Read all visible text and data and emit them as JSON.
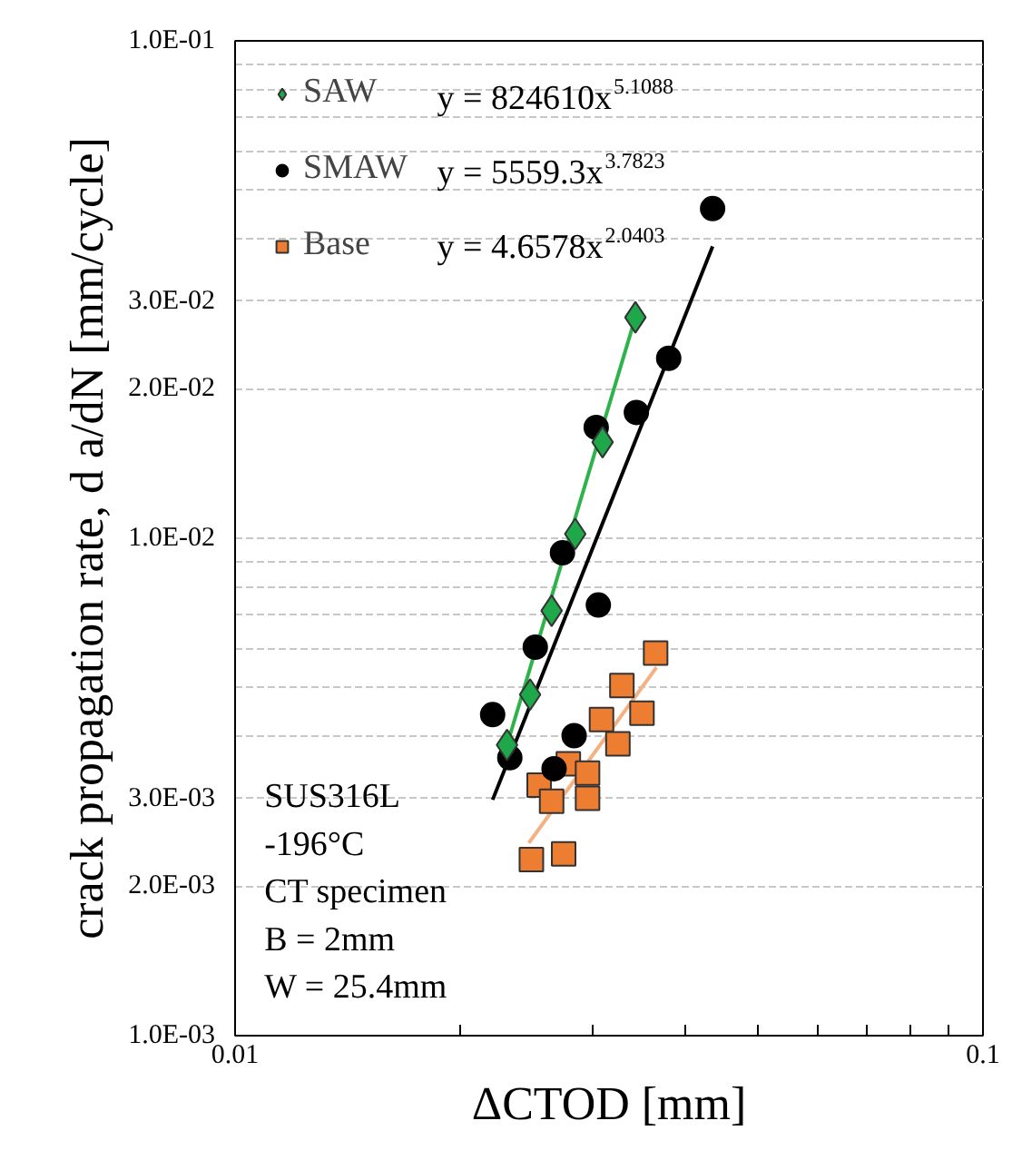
{
  "chart_data": {
    "type": "scatter",
    "xlabel": "ΔCTOD [mm]",
    "ylabel": "crack propagation rate, d a/dN [mm/cycle]",
    "log": "xy",
    "grid": "y",
    "legend": "top left",
    "xlim": [
      0.01,
      0.1
    ],
    "xticks": [
      0.01,
      {
        "value": 0.02,
        "label": null
      },
      {
        "value": 0.03,
        "label": null
      },
      {
        "value": 0.04,
        "label": null
      },
      {
        "value": 0.05,
        "label": null
      },
      {
        "value": 0.06,
        "label": null
      },
      {
        "value": 0.07,
        "label": null
      },
      {
        "value": 0.08,
        "label": null
      },
      {
        "value": 0.09,
        "label": null
      },
      0.1
    ],
    "ylim": [
      0.001,
      0.1
    ],
    "yticks": [
      {
        "value": 0.001,
        "label": "1.0E-03"
      },
      {
        "value": 0.002,
        "label": "2.0E-03"
      },
      {
        "value": 0.003,
        "label": "3.0E-03"
      },
      {
        "value": 0.004,
        "label": null
      },
      {
        "value": 0.005,
        "label": null
      },
      {
        "value": 0.006,
        "label": null
      },
      {
        "value": 0.007,
        "label": null
      },
      {
        "value": 0.008,
        "label": null
      },
      {
        "value": 0.009,
        "label": null
      },
      {
        "value": 0.01,
        "label": "1.0E-02"
      },
      {
        "value": 0.02,
        "label": "2.0E-02"
      },
      {
        "value": 0.03,
        "label": "3.0E-02"
      },
      {
        "value": 0.04,
        "label": null
      },
      {
        "value": 0.05,
        "label": null
      },
      {
        "value": 0.06,
        "label": null
      },
      {
        "value": 0.07,
        "label": null
      },
      {
        "value": 0.08,
        "label": null
      },
      {
        "value": 0.09,
        "label": null
      },
      {
        "value": 0.1,
        "label": "1.0E-01"
      }
    ],
    "series": [
      {
        "name": "SAW",
        "color": "#1fa84a",
        "marker": "diamond",
        "x": [
          0.0231,
          0.0248,
          0.0265,
          0.0285,
          0.031,
          0.0343
        ],
        "values": [
          0.00384,
          0.00485,
          0.00715,
          0.0102,
          0.0156,
          0.0278
        ]
      },
      {
        "name": "SMAW",
        "color": "#000000",
        "marker": "circle",
        "x": [
          0.0221,
          0.0233,
          0.0252,
          0.0267,
          0.0274,
          0.0284,
          0.0304,
          0.0306,
          0.0344,
          0.038,
          0.0435
        ],
        "values": [
          0.00442,
          0.00362,
          0.00604,
          0.00344,
          0.00935,
          0.00401,
          0.0167,
          0.00734,
          0.0179,
          0.023,
          0.046
        ]
      },
      {
        "name": "Base",
        "color": "#ed7d31",
        "marker": "square",
        "x": [
          0.0249,
          0.0255,
          0.0265,
          0.0275,
          0.0279,
          0.0296,
          0.0296,
          0.0309,
          0.0325,
          0.0329,
          0.035,
          0.0365
        ],
        "values": [
          0.00226,
          0.00319,
          0.00296,
          0.00232,
          0.00352,
          0.00337,
          0.003,
          0.00432,
          0.00386,
          0.00506,
          0.00445,
          0.00588
        ]
      },
      {
        "type": "line",
        "color": "#2db34a",
        "x": [
          0.0231,
          0.0343
        ],
        "values": [
          0.00384,
          0.0278
        ]
      },
      {
        "type": "line",
        "color": "#000000",
        "x": [
          0.0221,
          0.0435
        ],
        "values": [
          0.00298,
          0.0386
        ]
      },
      {
        "type": "line",
        "color": "#f4b183",
        "x": [
          0.0247,
          0.0366
        ],
        "values": [
          0.00244,
          0.0055
        ]
      }
    ],
    "annotations": [
      "y = 824610x$^{5.1088}$",
      "y = 5559.3x$^{3.7823}$",
      "y = 4.6578x$^{2.0403}$",
      "SUS316L",
      "-196°C",
      "CT specimen",
      "B = 2mm",
      "W = 25.4mm"
    ]
  }
}
